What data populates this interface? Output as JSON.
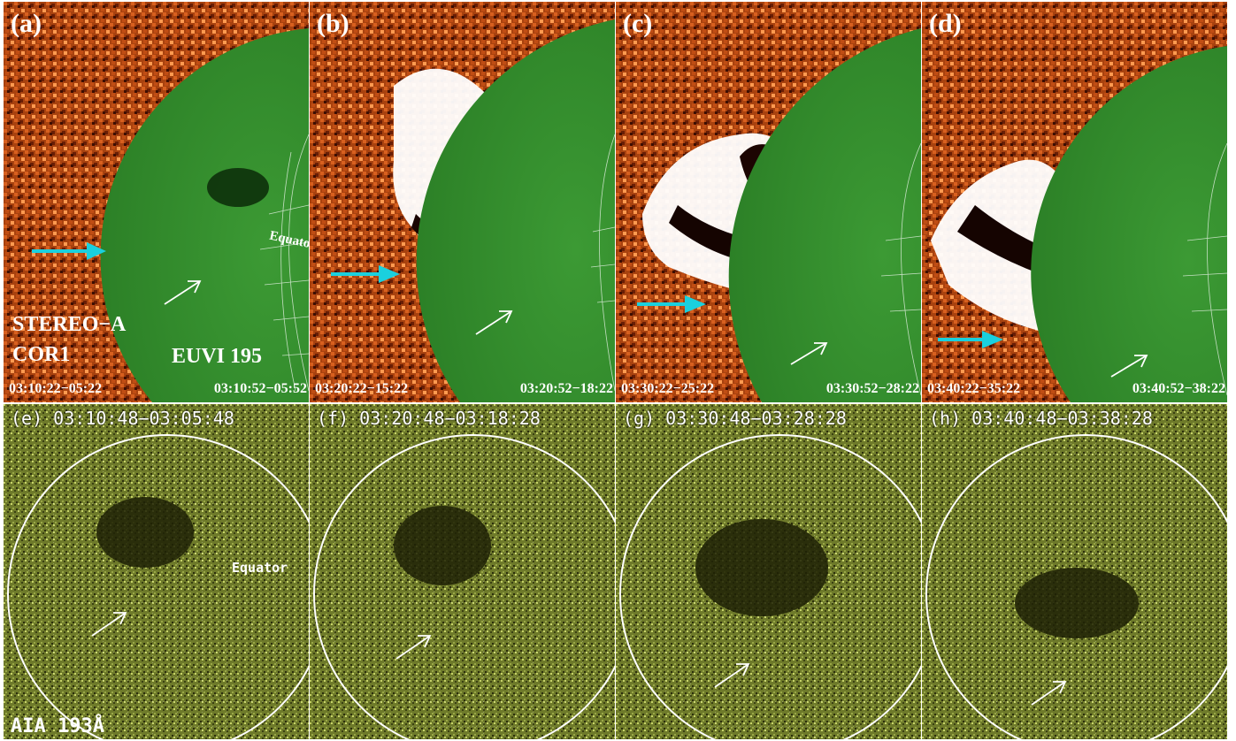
{
  "colors": {
    "cor1_field": "#a03a10",
    "euvi_disk": "#2f8a2a",
    "aia_field": "#6e7a2a",
    "aia_dark": "#2b2e0c",
    "cyan_arrow": "#1ad0de",
    "white": "#ffffff"
  },
  "top_panels": [
    {
      "label": "(a)",
      "cor1_time": "03:10:22−05:22",
      "euvi_time": "03:10:52−05:52"
    },
    {
      "label": "(b)",
      "cor1_time": "03:20:22−15:22",
      "euvi_time": "03:20:52−18:22"
    },
    {
      "label": "(c)",
      "cor1_time": "03:30:22−25:22",
      "euvi_time": "03:30:52−28:22"
    },
    {
      "label": "(d)",
      "cor1_time": "03:40:22−35:22",
      "euvi_time": "03:40:52−38:22"
    }
  ],
  "bottom_panels": [
    {
      "label": "(e)",
      "time": "03:10:48−03:05:48"
    },
    {
      "label": "(f)",
      "time": "03:20:48−03:18:28"
    },
    {
      "label": "(g)",
      "time": "03:30:48−03:28:28"
    },
    {
      "label": "(h)",
      "time": "03:40:48−03:38:28"
    }
  ],
  "instrument_labels": {
    "stereo": "STEREO−A",
    "cor1": "COR1",
    "euvi": "EUVI 195",
    "aia": "AIA 193Å"
  },
  "equator_label_top": "Equator",
  "equator_label_bottom": "Equator"
}
